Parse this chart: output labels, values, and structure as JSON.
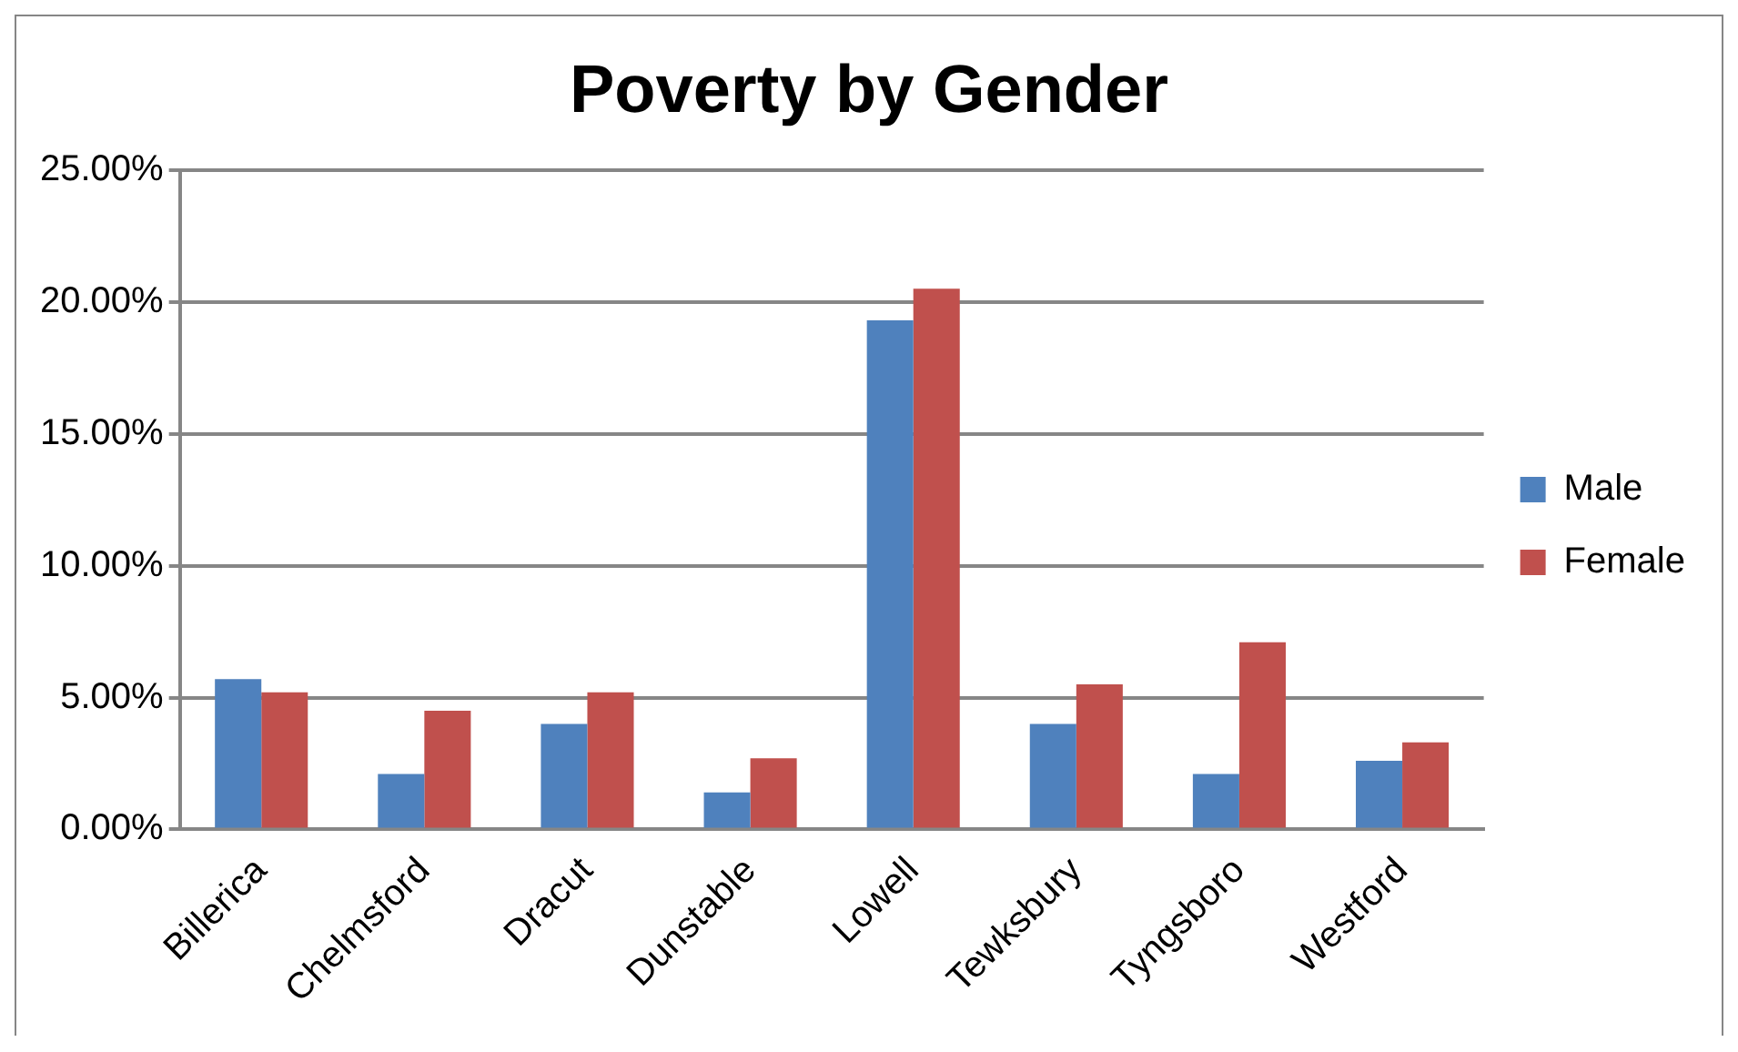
{
  "chart_data": {
    "type": "bar",
    "title": "Poverty by Gender",
    "categories": [
      "Billerica",
      "Chelmsford",
      "Dracut",
      "Dunstable",
      "Lowell",
      "Tewksbury",
      "Tyngsboro",
      "Westford"
    ],
    "series": [
      {
        "name": "Male",
        "color": "#4f81bd",
        "values": [
          5.7,
          2.1,
          4.0,
          1.4,
          19.3,
          4.0,
          2.1,
          2.6
        ]
      },
      {
        "name": "Female",
        "color": "#c0504d",
        "values": [
          5.2,
          4.5,
          5.2,
          2.7,
          20.5,
          5.5,
          7.1,
          3.3
        ]
      }
    ],
    "ylim": [
      0,
      25
    ],
    "yticks": [
      {
        "value": 0,
        "label": "0.00%"
      },
      {
        "value": 5,
        "label": "5.00%"
      },
      {
        "value": 10,
        "label": "10.00%"
      },
      {
        "value": 15,
        "label": "15.00%"
      },
      {
        "value": 20,
        "label": "20.00%"
      },
      {
        "value": 25,
        "label": "25.00%"
      }
    ],
    "grid": "y",
    "legend": "right"
  }
}
